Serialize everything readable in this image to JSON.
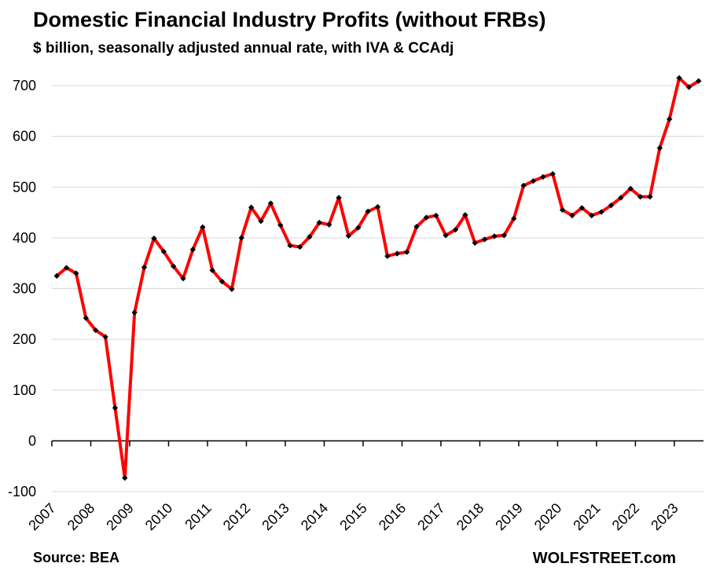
{
  "chart_data": {
    "type": "line",
    "title": "Domestic Financial Industry Profits (without FRBs)",
    "subtitle": "$ billion, seasonally adjusted annual rate, with IVA & CCAdj",
    "source": "Source: BEA",
    "brand": "WOLFSTREET.com",
    "ylim": [
      -100,
      700
    ],
    "yticks": [
      -100,
      0,
      100,
      200,
      300,
      400,
      500,
      600,
      700
    ],
    "grid": true,
    "x_categories": [
      "2007",
      "2008",
      "2009",
      "2010",
      "2011",
      "2012",
      "2013",
      "2014",
      "2015",
      "2016",
      "2017",
      "2018",
      "2019",
      "2020",
      "2021",
      "2022",
      "2023"
    ],
    "series": [
      {
        "color": "#ff0000",
        "marker_color": "#000000",
        "x": [
          "2007 Q1",
          "2007 Q2",
          "2007 Q3",
          "2007 Q4",
          "2008 Q1",
          "2008 Q2",
          "2008 Q3",
          "2008 Q4",
          "2009 Q1",
          "2009 Q2",
          "2009 Q3",
          "2009 Q4",
          "2010 Q1",
          "2010 Q2",
          "2010 Q3",
          "2010 Q4",
          "2011 Q1",
          "2011 Q2",
          "2011 Q3",
          "2011 Q4",
          "2012 Q1",
          "2012 Q2",
          "2012 Q3",
          "2012 Q4",
          "2013 Q1",
          "2013 Q2",
          "2013 Q3",
          "2013 Q4",
          "2014 Q1",
          "2014 Q2",
          "2014 Q3",
          "2014 Q4",
          "2015 Q1",
          "2015 Q2",
          "2015 Q3",
          "2015 Q4",
          "2016 Q1",
          "2016 Q2",
          "2016 Q3",
          "2016 Q4",
          "2017 Q1",
          "2017 Q2",
          "2017 Q3",
          "2017 Q4",
          "2018 Q1",
          "2018 Q2",
          "2018 Q3",
          "2018 Q4",
          "2019 Q1",
          "2019 Q2",
          "2019 Q3",
          "2019 Q4",
          "2020 Q1",
          "2020 Q2",
          "2020 Q3",
          "2020 Q4",
          "2021 Q1",
          "2021 Q2",
          "2021 Q3",
          "2021 Q4",
          "2022 Q1",
          "2022 Q2",
          "2022 Q3",
          "2022 Q4",
          "2023 Q1",
          "2023 Q2",
          "2023 Q3"
        ],
        "values": [
          325,
          341,
          330,
          242,
          218,
          205,
          65,
          -73,
          253,
          342,
          399,
          373,
          344,
          320,
          377,
          421,
          336,
          314,
          299,
          400,
          460,
          433,
          468,
          425,
          385,
          382,
          402,
          430,
          426,
          479,
          404,
          420,
          452,
          461,
          364,
          369,
          372,
          422,
          440,
          444,
          405,
          416,
          445,
          390,
          397,
          403,
          405,
          438,
          503,
          512,
          520,
          526,
          455,
          444,
          459,
          444,
          451,
          464,
          479,
          497,
          481,
          481,
          577,
          634,
          715,
          697,
          709
        ]
      }
    ]
  }
}
